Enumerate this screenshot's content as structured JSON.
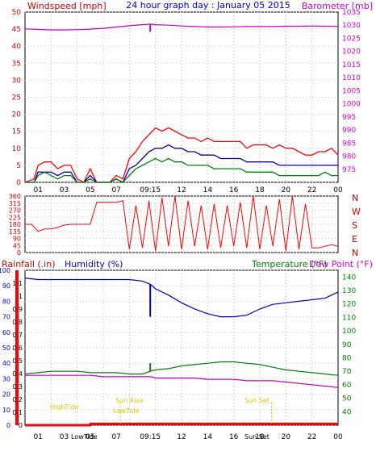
{
  "title": "24 hour graph day : January 05 2015",
  "colors": {
    "wind_red": "#ff0000",
    "wind_blue": "#0000c0",
    "wind_green": "#008000",
    "baro_magenta": "#c000c0",
    "dir_red": "#ff0000",
    "humidity_blue": "#0000c0",
    "temp_green": "#008000",
    "dew_magenta": "#c000c0",
    "rain_red": "#ff0000",
    "sun_yellow": "#e0c000",
    "label_red": "#cc0000",
    "label_blue": "#0000cc",
    "label_green": "#008000",
    "label_magenta": "#cc00cc"
  },
  "x_ticks": [
    "01",
    "03",
    "05",
    "07",
    "09:15",
    "12",
    "14",
    "16",
    "18",
    "20",
    "22",
    "00"
  ],
  "x_ticks_bottom": [
    "01",
    "03",
    "05",
    "07",
    "09:15",
    "12",
    "14",
    "16",
    "18",
    "20",
    "22",
    "00"
  ],
  "bottom_annotations": {
    "high_tide_1": "HighTide",
    "low_tide_1": "LowTide",
    "sun_rise": "Sun Rise",
    "low_tide_2": "LowTide",
    "sun_set": "Sun Set",
    "sun_set_2": "Sun Set",
    "low_tide_3": "LowTide"
  },
  "chart_data": [
    {
      "type": "line",
      "title": "24 hour graph day : January 05 2015",
      "ylabel_left": "Windspeed [mph]",
      "ylabel_right": "Barometer [mb]",
      "ylim_left": [
        0,
        50
      ],
      "yticks_left": [
        "0",
        "5",
        "10",
        "15",
        "20",
        "25",
        "30",
        "35",
        "40",
        "45",
        "50"
      ],
      "ylim_right": [
        970,
        1035
      ],
      "yticks_right": [
        "975",
        "980",
        "985",
        "990",
        "995",
        "1000",
        "1005",
        "1010",
        "1015",
        "1020",
        "1025",
        "1030",
        "1035"
      ],
      "x_hours_range": [
        0,
        24
      ],
      "series": [
        {
          "axis": "left",
          "x": [
            0,
            0.7,
            1,
            1.5,
            2,
            2.5,
            3,
            3.5,
            4,
            4.5,
            5,
            5.5,
            6,
            6.5,
            7,
            7.5,
            8,
            8.5,
            9,
            9.5,
            10,
            10.5,
            11,
            11.5,
            12,
            12.5,
            13,
            13.5,
            14,
            14.5,
            15,
            15.5,
            16,
            16.5,
            17,
            17.5,
            18,
            18.5,
            19,
            19.5,
            20,
            20.5,
            21,
            21.5,
            22,
            22.5,
            23,
            23.5,
            24
          ],
          "values": [
            0,
            1,
            5,
            6,
            6,
            4,
            5,
            5,
            1,
            0,
            4,
            0,
            0,
            0,
            2,
            1,
            7,
            9,
            12,
            14,
            16,
            15,
            16,
            15,
            14,
            13,
            13,
            12,
            13,
            12,
            12,
            12,
            12,
            12,
            10,
            11,
            11,
            11,
            10,
            11,
            10,
            10,
            9,
            8,
            8,
            9,
            9,
            10,
            8
          ]
        },
        {
          "axis": "left",
          "x": [
            0,
            0.7,
            1,
            1.5,
            2,
            2.5,
            3,
            3.5,
            4,
            4.5,
            5,
            5.5,
            6,
            6.5,
            7,
            7.5,
            8,
            8.5,
            9,
            9.5,
            10,
            10.5,
            11,
            11.5,
            12,
            12.5,
            13,
            13.5,
            14,
            14.5,
            15,
            15.5,
            16,
            16.5,
            17,
            17.5,
            18,
            18.5,
            19,
            19.5,
            20,
            20.5,
            21,
            21.5,
            22,
            22.5,
            23,
            23.5,
            24
          ],
          "values": [
            0,
            0,
            3,
            3,
            3,
            2,
            3,
            3,
            0,
            0,
            2,
            0,
            0,
            0,
            1,
            0,
            4,
            5,
            7,
            9,
            10,
            10,
            11,
            10,
            10,
            9,
            9,
            8,
            8,
            8,
            7,
            7,
            7,
            7,
            6,
            6,
            6,
            6,
            6,
            5,
            5,
            5,
            5,
            5,
            5,
            5,
            5,
            5,
            5
          ]
        },
        {
          "axis": "left",
          "x": [
            0,
            0.7,
            1,
            1.5,
            2,
            2.5,
            3,
            3.5,
            4,
            4.5,
            5,
            5.5,
            6,
            6.5,
            7,
            7.5,
            8,
            8.5,
            9,
            9.5,
            10,
            10.5,
            11,
            11.5,
            12,
            12.5,
            13,
            13.5,
            14,
            14.5,
            15,
            15.5,
            16,
            16.5,
            17,
            17.5,
            18,
            18.5,
            19,
            19.5,
            20,
            20.5,
            21,
            21.5,
            22,
            22.5,
            23,
            23.5,
            24
          ],
          "values": [
            0,
            0,
            2,
            3,
            2,
            1,
            2,
            2,
            0,
            0,
            1,
            0,
            0,
            0,
            1,
            0,
            2,
            4,
            5,
            6,
            7,
            6,
            7,
            6,
            6,
            5,
            5,
            5,
            5,
            4,
            4,
            4,
            4,
            4,
            3,
            3,
            3,
            3,
            3,
            2,
            2,
            2,
            2,
            2,
            2,
            2,
            3,
            2,
            2
          ]
        },
        {
          "axis": "right",
          "x": [
            0,
            1,
            2,
            3,
            4,
            5,
            6,
            7,
            8,
            9,
            9.6,
            10,
            11,
            12,
            13,
            14,
            15,
            16,
            17,
            18,
            19,
            20,
            21,
            22,
            23,
            24
          ],
          "values": [
            1028.6,
            1028.4,
            1028.2,
            1028.2,
            1028.3,
            1028.5,
            1028.8,
            1029.3,
            1029.8,
            1030.2,
            1030.4,
            1030.2,
            1030.0,
            1029.7,
            1029.5,
            1029.3,
            1029.3,
            1029.4,
            1029.5,
            1029.5,
            1029.5,
            1029.6,
            1029.6,
            1029.7,
            1029.6,
            1029.6
          ]
        }
      ]
    },
    {
      "type": "scatter",
      "ylabel_right": "N W S E N",
      "ylim": [
        0,
        360
      ],
      "yticks": [
        "0",
        "45",
        "90",
        "135",
        "180",
        "225",
        "270",
        "315",
        "360"
      ],
      "x_hours_range": [
        0,
        24
      ],
      "series": [
        {
          "x": [
            0,
            0.5,
            1,
            1.5,
            2,
            2.5,
            3,
            3.5,
            4,
            4.5,
            5,
            5.5,
            6,
            6.5,
            7,
            7.5,
            8,
            8.5,
            9,
            9.5,
            10,
            10.5,
            11,
            11.5,
            12,
            12.5,
            13,
            13.5,
            14,
            14.5,
            15,
            15.5,
            16,
            16.5,
            17,
            17.5,
            18,
            18.5,
            19,
            19.5,
            20,
            20.5,
            21,
            21.5,
            22,
            22.5,
            23,
            23.5,
            24
          ],
          "values": [
            180,
            180,
            135,
            150,
            150,
            160,
            175,
            180,
            180,
            180,
            180,
            320,
            320,
            320,
            320,
            330,
            20,
            300,
            30,
            330,
            10,
            350,
            40,
            360,
            20,
            330,
            40,
            300,
            20,
            310,
            30,
            300,
            40,
            320,
            30,
            360,
            20,
            300,
            40,
            340,
            10,
            360,
            20,
            310,
            30,
            30,
            40,
            50,
            40
          ]
        }
      ]
    },
    {
      "type": "line",
      "ylabel_left": "Rainfall (.in)",
      "ylabel_left2": "Humidity (%)",
      "ylabel_right": "Temperature (°F)",
      "ylabel_right2": "Dew Point (°F)",
      "ylim_rain": [
        0,
        1.2
      ],
      "yticks_rain": [
        "0",
        "0.1",
        "0.2",
        "0.3",
        "0.4",
        "0.5",
        "0.6",
        "0.7",
        "0.8",
        "0.9",
        "1",
        "1.1"
      ],
      "ylim_humidity": [
        0,
        100
      ],
      "yticks_humidity": [
        "0",
        "10",
        "20",
        "30",
        "40",
        "50",
        "60",
        "70",
        "80",
        "90",
        "100"
      ],
      "ylim_temp": [
        30,
        145
      ],
      "yticks_temp": [
        "40",
        "50",
        "60",
        "70",
        "80",
        "90",
        "100",
        "110",
        "120",
        "130",
        "140"
      ],
      "x_hours_range": [
        0,
        24
      ],
      "series": [
        {
          "name": "Humidity",
          "axis": "humidity",
          "x": [
            0,
            1,
            2,
            3,
            4,
            5,
            6,
            7,
            8,
            9,
            9.6,
            10,
            11,
            12,
            13,
            14,
            15,
            16,
            17,
            18,
            19,
            20,
            21,
            22,
            23,
            24
          ],
          "values": [
            95,
            94,
            94,
            94,
            94,
            94,
            94,
            94,
            94,
            93,
            91,
            88,
            84,
            79,
            75,
            72,
            70,
            70,
            71,
            75,
            78,
            79,
            80,
            81,
            82,
            86
          ]
        },
        {
          "name": "Temperature",
          "axis": "temp",
          "x": [
            0,
            1,
            2,
            3,
            4,
            5,
            6,
            7,
            8,
            9,
            9.6,
            10,
            11,
            12,
            13,
            14,
            15,
            16,
            17,
            18,
            19,
            20,
            21,
            22,
            23,
            24
          ],
          "values": [
            68,
            69,
            70,
            70,
            70,
            69,
            69,
            69,
            68,
            68,
            70,
            71,
            72,
            74,
            75,
            76,
            77,
            77,
            76,
            75,
            73,
            71,
            70,
            69,
            68,
            67
          ]
        },
        {
          "name": "Dew Point",
          "axis": "temp",
          "x": [
            0,
            1,
            2,
            3,
            4,
            5,
            6,
            7,
            8,
            9,
            9.6,
            10,
            11,
            12,
            13,
            14,
            15,
            16,
            17,
            18,
            19,
            20,
            21,
            22,
            23,
            24
          ],
          "values": [
            67,
            67,
            67,
            67,
            67,
            67,
            66,
            66,
            66,
            66,
            66,
            65,
            65,
            65,
            65,
            64,
            64,
            64,
            63,
            63,
            63,
            62,
            61,
            60,
            59,
            58
          ]
        },
        {
          "name": "Rainfall",
          "axis": "rain",
          "x": [
            0,
            5,
            5.01,
            24
          ],
          "values": [
            0,
            0,
            0.01,
            0.01
          ]
        }
      ]
    }
  ]
}
